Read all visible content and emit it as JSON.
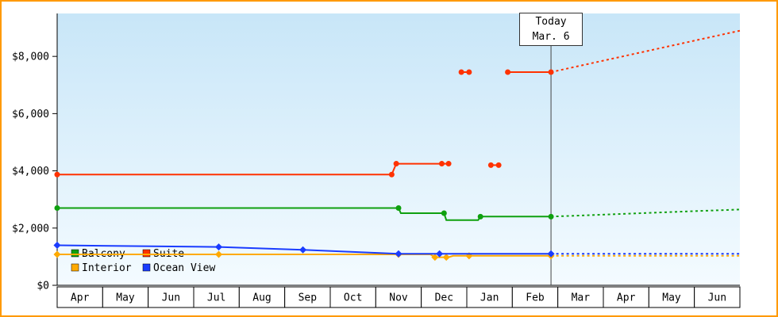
{
  "frame": {
    "border_color": "#ff9900"
  },
  "chart_data": {
    "type": "line",
    "description": "Cruise cabin price history per category with dotted forecast after today marker",
    "x_axis": {
      "tick_labels": [
        "Apr",
        "May",
        "Jun",
        "Jul",
        "Aug",
        "Sep",
        "Oct",
        "Nov",
        "Dec",
        "Jan",
        "Feb",
        "Mar",
        "Apr",
        "May",
        "Jun"
      ]
    },
    "y_axis": {
      "tick_values": [
        0,
        2000,
        4000,
        6000,
        8000
      ],
      "tick_labels": [
        "$0",
        "$2,000",
        "$4,000",
        "$6,000",
        "$8,000"
      ],
      "range": [
        0,
        9500
      ]
    },
    "today_marker": {
      "line1": "Today",
      "line2": "Mar. 6",
      "x_month": 10.85
    },
    "plot_background": {
      "top": "#c8e6f8",
      "bottom": "#f4fbff"
    },
    "legend": {
      "position": "bottom-left-inside",
      "items": [
        {
          "label": "Balcony",
          "color": "#0fa00f"
        },
        {
          "label": "Suite",
          "color": "#ff3200"
        },
        {
          "label": "Interior",
          "color": "#ffaa00"
        },
        {
          "label": "Ocean View",
          "color": "#1a3cff"
        }
      ]
    },
    "series": [
      {
        "name": "Suite",
        "color": "#ff3200",
        "marker": "circle",
        "lines": [
          {
            "dashed": false,
            "points": [
              [
                0,
                3870
              ],
              [
                7.35,
                3870
              ],
              [
                7.45,
                4250
              ],
              [
                8.6,
                4250
              ]
            ]
          },
          {
            "dashed": false,
            "points": [
              [
                8.88,
                7450
              ],
              [
                9.05,
                7450
              ]
            ]
          },
          {
            "dashed": false,
            "points": [
              [
                9.53,
                4200
              ],
              [
                9.7,
                4200
              ]
            ]
          },
          {
            "dashed": false,
            "points": [
              [
                9.9,
                7450
              ],
              [
                10.85,
                7450
              ]
            ]
          },
          {
            "dashed": true,
            "points": [
              [
                10.85,
                7450
              ],
              [
                15,
                8900
              ]
            ]
          }
        ],
        "markers": [
          [
            0,
            3870
          ],
          [
            7.35,
            3870
          ],
          [
            7.45,
            4250
          ],
          [
            8.45,
            4250
          ],
          [
            8.6,
            4250
          ],
          [
            8.88,
            7450
          ],
          [
            9.05,
            7450
          ],
          [
            9.53,
            4200
          ],
          [
            9.7,
            4200
          ],
          [
            9.9,
            7450
          ],
          [
            10.85,
            7450
          ]
        ]
      },
      {
        "name": "Balcony",
        "color": "#0fa00f",
        "marker": "circle",
        "lines": [
          {
            "dashed": false,
            "points": [
              [
                0,
                2700
              ],
              [
                7.5,
                2700
              ],
              [
                7.55,
                2520
              ],
              [
                8.5,
                2520
              ],
              [
                8.55,
                2280
              ],
              [
                9.25,
                2280
              ],
              [
                9.3,
                2400
              ],
              [
                10.85,
                2400
              ]
            ]
          },
          {
            "dashed": true,
            "points": [
              [
                10.85,
                2400
              ],
              [
                15,
                2650
              ]
            ]
          }
        ],
        "markers": [
          [
            0,
            2700
          ],
          [
            7.5,
            2700
          ],
          [
            8.5,
            2520
          ],
          [
            9.3,
            2400
          ],
          [
            10.85,
            2400
          ]
        ]
      },
      {
        "name": "Interior",
        "color": "#ffaa00",
        "marker": "diamond",
        "lines": [
          {
            "dashed": false,
            "points": [
              [
                0,
                1080
              ],
              [
                8.2,
                1080
              ],
              [
                8.3,
                980
              ],
              [
                8.6,
                980
              ],
              [
                8.7,
                1030
              ],
              [
                10.85,
                1030
              ]
            ]
          },
          {
            "dashed": true,
            "points": [
              [
                10.85,
                1030
              ],
              [
                15,
                1030
              ]
            ]
          }
        ],
        "markers": [
          [
            0,
            1080
          ],
          [
            3.55,
            1080
          ],
          [
            7.5,
            1080
          ],
          [
            8.3,
            980
          ],
          [
            8.55,
            980
          ],
          [
            9.05,
            1030
          ],
          [
            10.85,
            1030
          ]
        ]
      },
      {
        "name": "Ocean View",
        "color": "#1a3cff",
        "marker": "diamond",
        "lines": [
          {
            "dashed": false,
            "points": [
              [
                0,
                1400
              ],
              [
                3.55,
                1340
              ],
              [
                5.4,
                1240
              ],
              [
                7.5,
                1100
              ],
              [
                10.85,
                1100
              ]
            ]
          },
          {
            "dashed": true,
            "points": [
              [
                10.85,
                1100
              ],
              [
                15,
                1100
              ]
            ]
          }
        ],
        "markers": [
          [
            0,
            1400
          ],
          [
            3.55,
            1340
          ],
          [
            5.4,
            1240
          ],
          [
            7.5,
            1100
          ],
          [
            8.4,
            1100
          ],
          [
            10.85,
            1100
          ]
        ]
      }
    ]
  }
}
